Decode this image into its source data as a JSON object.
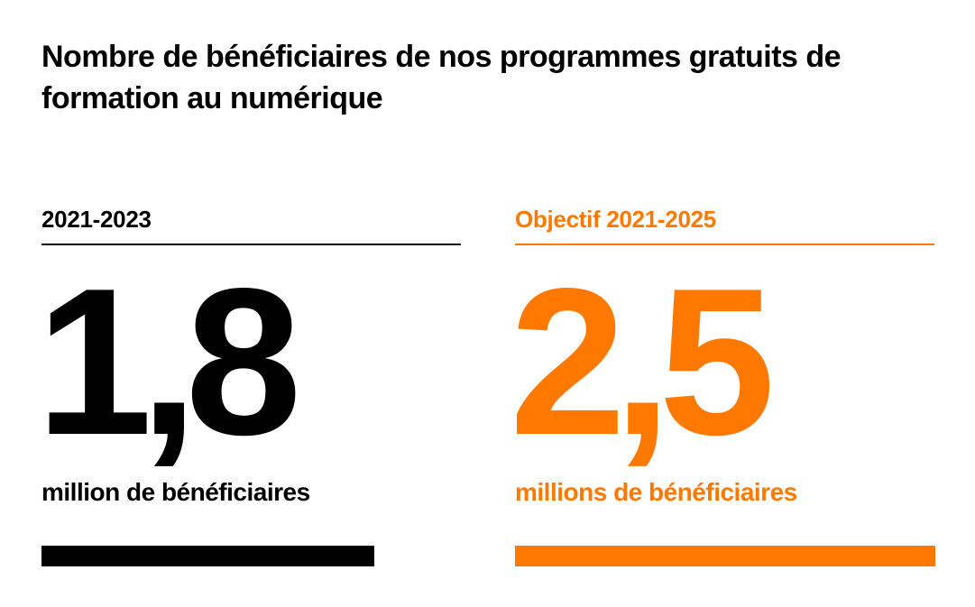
{
  "title": "Nombre de bénéficiaires de nos programmes gratuits de formation au numérique",
  "panels": [
    {
      "period": "2021-2023",
      "value": "1,8",
      "unit": "million de bénéficiaires",
      "color": "#000000"
    },
    {
      "period": "Objectif 2021-2025",
      "value": "2,5",
      "unit": "millions de bénéficiaires",
      "color": "#ff7900"
    }
  ]
}
